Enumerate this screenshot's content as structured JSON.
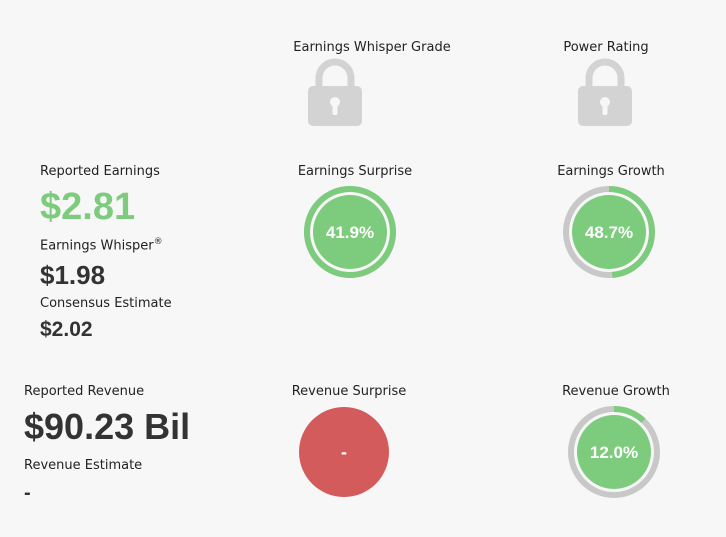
{
  "grades": {
    "whisper_grade_label": "Earnings Whisper Grade",
    "power_rating_label": "Power Rating"
  },
  "earnings": {
    "reported_label": "Reported Earnings",
    "reported_value": "$2.81",
    "whisper_label": "Earnings Whisper",
    "whisper_mark": "®",
    "whisper_value": "$1.98",
    "consensus_label": "Consensus Estimate",
    "consensus_value": "$2.02",
    "surprise_label": "Earnings Surprise",
    "surprise_value": "41.9%",
    "surprise_fraction": 1.0,
    "growth_label": "Earnings Growth",
    "growth_value": "48.7%",
    "growth_fraction": 0.487
  },
  "revenue": {
    "reported_label": "Reported Revenue",
    "reported_value": "$90.23 Bil",
    "estimate_label": "Revenue Estimate",
    "estimate_value": "-",
    "surprise_label": "Revenue Surprise",
    "surprise_value": "-",
    "growth_label": "Revenue Growth",
    "growth_value": "12.0%",
    "growth_fraction": 0.12
  },
  "colors": {
    "green": "#7dcb7d",
    "red": "#d35b5b",
    "track": "#c8c8c8",
    "lock": "#d3d3d3"
  },
  "icons": {
    "whisper_grade_lock": "lock-icon",
    "power_rating_lock": "lock-icon"
  }
}
